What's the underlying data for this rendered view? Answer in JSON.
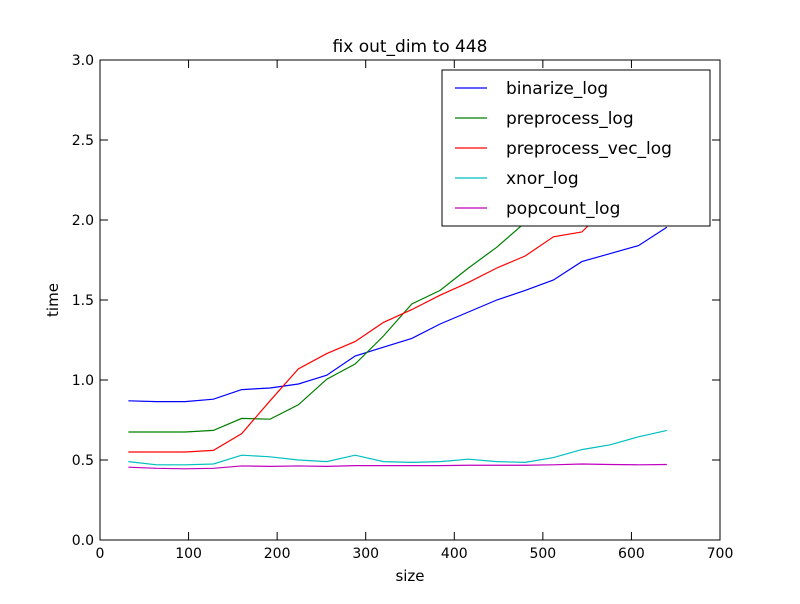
{
  "chart_data": {
    "type": "line",
    "title": "fix out_dim to 448",
    "xlabel": "size",
    "ylabel": "time",
    "xlim": [
      0,
      700
    ],
    "ylim": [
      0.0,
      3.0
    ],
    "x_ticks": [
      0,
      100,
      200,
      300,
      400,
      500,
      600,
      700
    ],
    "x_tick_labels": [
      "0",
      "100",
      "200",
      "300",
      "400",
      "500",
      "600",
      "700"
    ],
    "y_ticks": [
      0.0,
      0.5,
      1.0,
      1.5,
      2.0,
      2.5,
      3.0
    ],
    "y_tick_labels": [
      "0.0",
      "0.5",
      "1.0",
      "1.5",
      "2.0",
      "2.5",
      "3.0"
    ],
    "grid": false,
    "legend_position": "top-right",
    "x": [
      32,
      64,
      96,
      128,
      160,
      192,
      224,
      256,
      288,
      320,
      352,
      384,
      416,
      448,
      480,
      512,
      544,
      576,
      608,
      640
    ],
    "series": [
      {
        "name": "binarize_log",
        "color": "#0000ff",
        "values": [
          0.87,
          0.865,
          0.865,
          0.88,
          0.94,
          0.95,
          0.975,
          1.03,
          1.15,
          1.205,
          1.26,
          1.35,
          1.425,
          1.5,
          1.56,
          1.625,
          1.74,
          1.79,
          1.84,
          1.955
        ]
      },
      {
        "name": "preprocess_log",
        "color": "#008000",
        "values": [
          0.675,
          0.675,
          0.675,
          0.685,
          0.76,
          0.755,
          0.845,
          1.005,
          1.1,
          1.275,
          1.475,
          1.56,
          1.7,
          1.83,
          1.985,
          2.14,
          2.27,
          2.44,
          2.61,
          2.8
        ]
      },
      {
        "name": "preprocess_vec_log",
        "color": "#ff0000",
        "values": [
          0.55,
          0.55,
          0.55,
          0.56,
          0.665,
          0.87,
          1.07,
          1.165,
          1.24,
          1.36,
          1.44,
          1.53,
          1.61,
          1.7,
          1.775,
          1.895,
          1.925,
          2.1,
          2.2,
          2.33
        ]
      },
      {
        "name": "xnor_log",
        "color": "#00bfbf",
        "values": [
          0.49,
          0.47,
          0.47,
          0.475,
          0.53,
          0.52,
          0.5,
          0.49,
          0.53,
          0.49,
          0.485,
          0.49,
          0.505,
          0.49,
          0.485,
          0.515,
          0.565,
          0.595,
          0.645,
          0.685
        ]
      },
      {
        "name": "popcount_log",
        "color": "#bf00bf",
        "values": [
          0.455,
          0.448,
          0.445,
          0.448,
          0.463,
          0.46,
          0.463,
          0.46,
          0.465,
          0.465,
          0.465,
          0.465,
          0.467,
          0.467,
          0.467,
          0.47,
          0.475,
          0.472,
          0.47,
          0.472
        ]
      }
    ]
  }
}
